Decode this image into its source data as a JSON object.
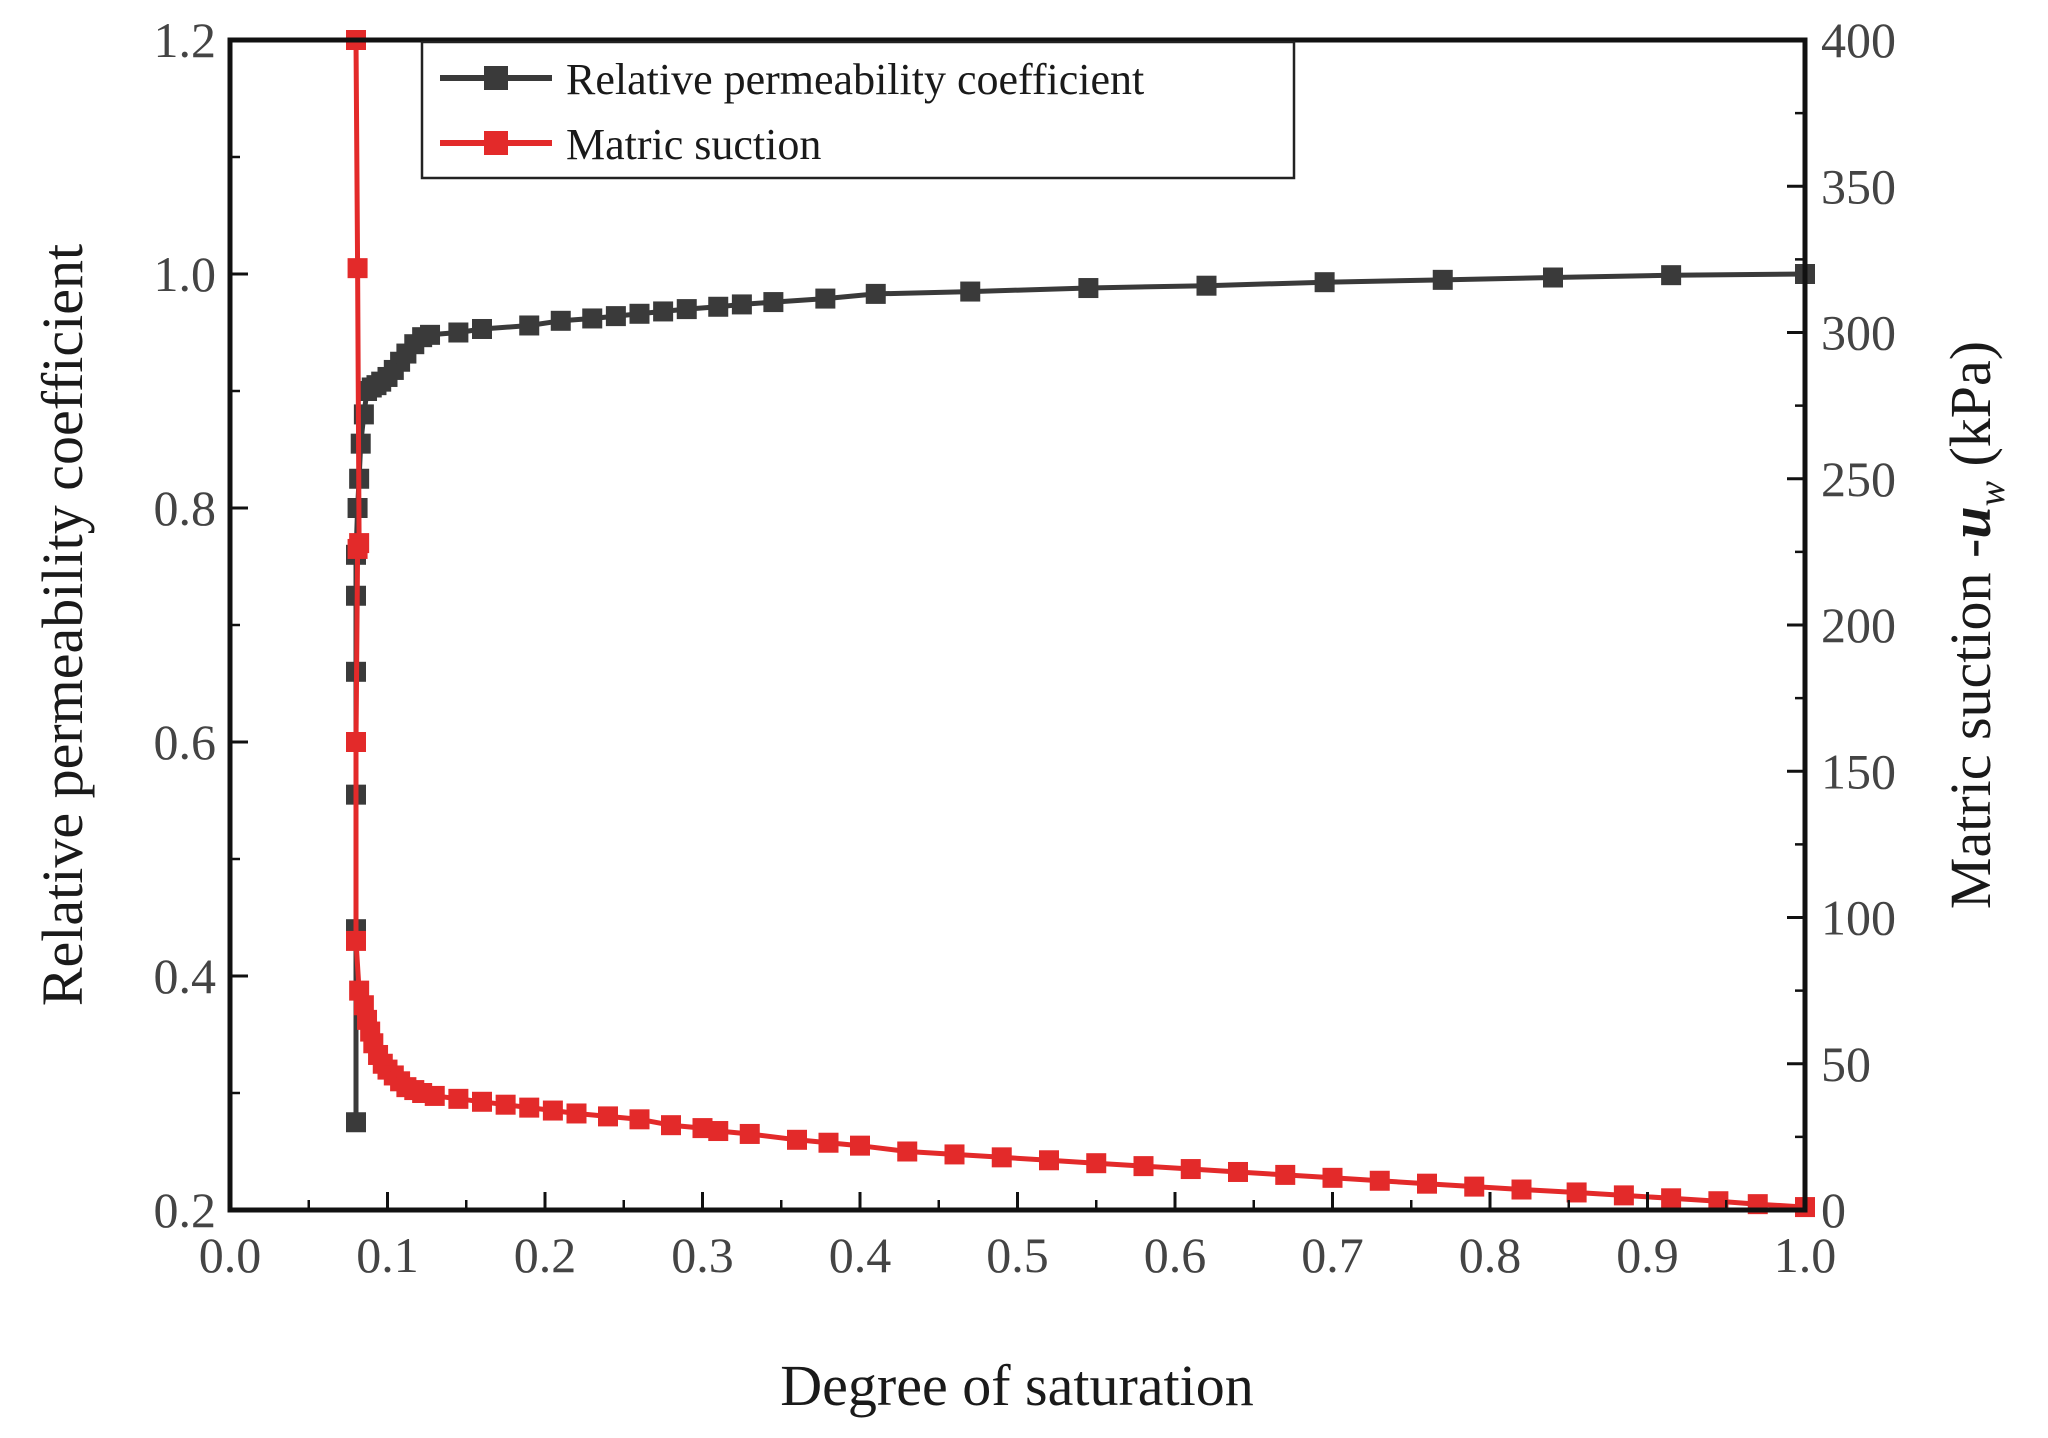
{
  "chart_data": {
    "type": "line",
    "title": "",
    "xlabel": "Degree of saturation",
    "ylabel_left": "Relative permeability coefficient",
    "ylabel_right": {
      "prefix": "Matric suction -",
      "var": "u",
      "sub": "w",
      "unit": " (kPa)"
    },
    "xlim": [
      0.0,
      1.0
    ],
    "ylim_left": [
      0.2,
      1.2
    ],
    "ylim_right": [
      0,
      400
    ],
    "x_ticks": [
      "0.0",
      "0.1",
      "0.2",
      "0.3",
      "0.4",
      "0.5",
      "0.6",
      "0.7",
      "0.8",
      "0.9",
      "1.0"
    ],
    "y_left_ticks": [
      "0.2",
      "0.4",
      "0.6",
      "0.8",
      "1.0",
      "1.2"
    ],
    "y_right_ticks": [
      "0",
      "50",
      "100",
      "150",
      "200",
      "250",
      "300",
      "350",
      "400"
    ],
    "grid": false,
    "legend_position": "top",
    "colors": {
      "permeability": "#3a3a3a",
      "suction": "#e32a2a"
    },
    "series": [
      {
        "name": "Relative permeability coefficient",
        "axis": "left",
        "color": "#3a3a3a",
        "x": [
          0.08,
          0.08,
          0.08,
          0.08,
          0.08,
          0.08,
          0.081,
          0.082,
          0.083,
          0.085,
          0.087,
          0.09,
          0.093,
          0.096,
          0.1,
          0.104,
          0.108,
          0.112,
          0.117,
          0.122,
          0.127,
          0.145,
          0.16,
          0.19,
          0.21,
          0.23,
          0.245,
          0.26,
          0.275,
          0.29,
          0.31,
          0.325,
          0.345,
          0.378,
          0.41,
          0.47,
          0.545,
          0.62,
          0.695,
          0.77,
          0.84,
          0.915,
          1.0
        ],
        "y": [
          0.275,
          0.44,
          0.555,
          0.66,
          0.725,
          0.76,
          0.8,
          0.825,
          0.855,
          0.88,
          0.9,
          0.903,
          0.905,
          0.908,
          0.912,
          0.918,
          0.925,
          0.932,
          0.94,
          0.946,
          0.948,
          0.95,
          0.953,
          0.956,
          0.96,
          0.962,
          0.964,
          0.966,
          0.968,
          0.97,
          0.972,
          0.974,
          0.976,
          0.979,
          0.983,
          0.985,
          0.988,
          0.99,
          0.993,
          0.995,
          0.997,
          0.999,
          1.0
        ]
      },
      {
        "name": "Matric suction",
        "axis": "right",
        "color": "#e32a2a",
        "x": [
          0.08,
          0.081,
          0.082,
          0.081,
          0.08,
          0.08,
          0.082,
          0.085,
          0.087,
          0.089,
          0.091,
          0.094,
          0.097,
          0.1,
          0.104,
          0.108,
          0.112,
          0.117,
          0.122,
          0.13,
          0.145,
          0.16,
          0.175,
          0.19,
          0.205,
          0.22,
          0.24,
          0.26,
          0.28,
          0.3,
          0.31,
          0.33,
          0.36,
          0.38,
          0.4,
          0.43,
          0.46,
          0.49,
          0.52,
          0.55,
          0.58,
          0.61,
          0.64,
          0.67,
          0.7,
          0.73,
          0.76,
          0.79,
          0.82,
          0.855,
          0.885,
          0.915,
          0.945,
          0.97,
          1.0
        ],
        "y": [
          400,
          322,
          228,
          226,
          160,
          92,
          75,
          70,
          65,
          61,
          57,
          53,
          50,
          48,
          46,
          44,
          42,
          41,
          40,
          39,
          38,
          37,
          36,
          35,
          34,
          33,
          32,
          31,
          29,
          28,
          27,
          26,
          24,
          23,
          22,
          20,
          19,
          18,
          17,
          16,
          15,
          14,
          13,
          12,
          11,
          10,
          9,
          8,
          7,
          6,
          5,
          4,
          3,
          2,
          1
        ]
      }
    ],
    "legend": [
      {
        "label": "Relative permeability coefficient",
        "color": "#3a3a3a"
      },
      {
        "label": "Matric suction",
        "color": "#e32a2a"
      }
    ]
  }
}
